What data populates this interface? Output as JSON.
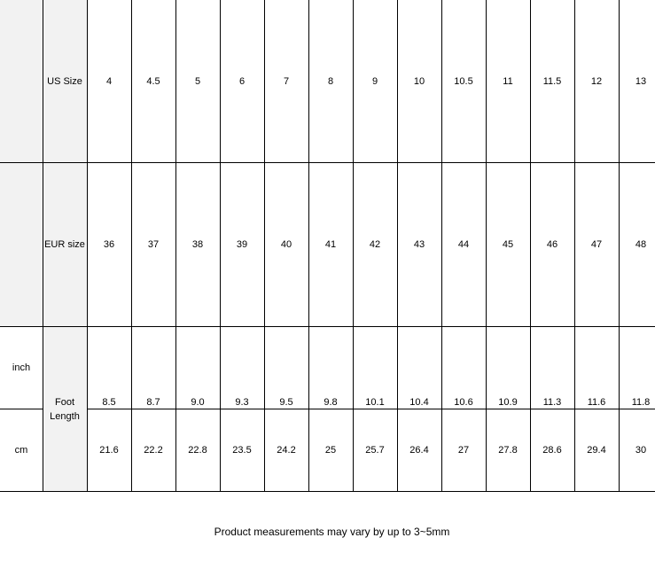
{
  "table": {
    "us_label": "US Size",
    "eur_label": "EUR size",
    "foot_length_label": "Foot\nLength",
    "inch_label": "inch",
    "cm_label": "cm",
    "us": [
      "4",
      "4.5",
      "5",
      "6",
      "7",
      "8",
      "9",
      "10",
      "10.5",
      "11",
      "11.5",
      "12",
      "13"
    ],
    "eur": [
      "36",
      "37",
      "38",
      "39",
      "40",
      "41",
      "42",
      "43",
      "44",
      "45",
      "46",
      "47",
      "48"
    ],
    "inch": [
      "8.5",
      "8.7",
      "9.0",
      "9.3",
      "9.5",
      "9.8",
      "10.1",
      "10.4",
      "10.6",
      "10.9",
      "11.3",
      "11.6",
      "11.8"
    ],
    "cm": [
      "21.6",
      "22.2",
      "22.8",
      "23.5",
      "24.2",
      "25",
      "25.7",
      "26.4",
      "27",
      "27.8",
      "28.6",
      "29.4",
      "30"
    ]
  },
  "caption": "Product measurements may vary by up to 3~5mm",
  "colors": {
    "header_bg": "#f2f2f2",
    "border": "#000000"
  }
}
